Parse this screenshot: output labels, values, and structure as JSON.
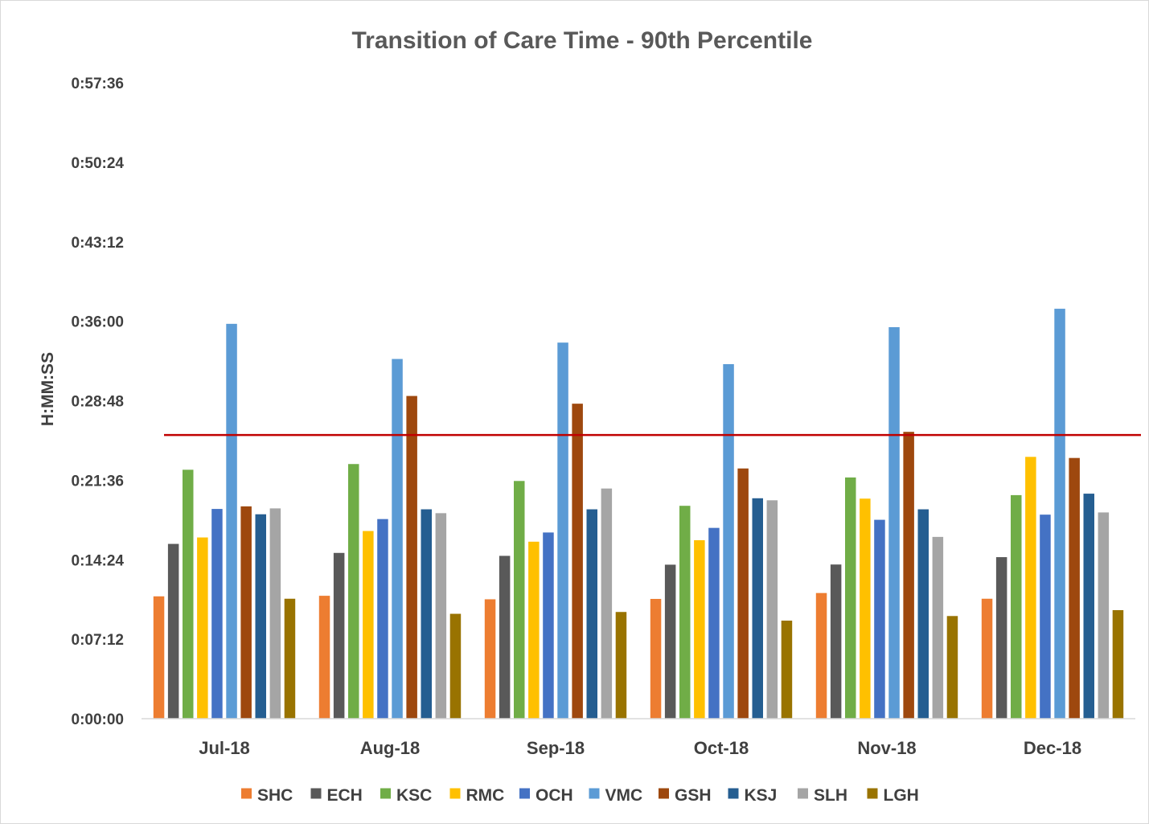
{
  "chart_data": {
    "type": "bar",
    "title": "Transition of Care Time - 90th Percentile",
    "ylabel": "H:MM:SS",
    "xlabel": "",
    "categories": [
      "Jul-18",
      "Aug-18",
      "Sep-18",
      "Oct-18",
      "Nov-18",
      "Dec-18"
    ],
    "y_unit": "seconds",
    "ylim": [
      0,
      3456
    ],
    "y_tick_values": [
      0,
      432,
      864,
      1296,
      1728,
      2160,
      2592,
      3024,
      3456
    ],
    "y_tick_labels": [
      "0:00:00",
      "0:07:12",
      "0:14:24",
      "0:21:36",
      "0:28:48",
      "0:36:00",
      "0:43:12",
      "0:50:24",
      "0:57:36"
    ],
    "grid": false,
    "legend": "bottom",
    "target_line": {
      "value": 1542,
      "color": "#C00000"
    },
    "series": [
      {
        "name": "SHC",
        "color": "#ED7D31",
        "values": [
          665,
          668,
          649,
          651,
          683,
          652
        ]
      },
      {
        "name": "ECH",
        "color": "#595959",
        "values": [
          950,
          901,
          885,
          837,
          838,
          878
        ]
      },
      {
        "name": "KSC",
        "color": "#70AD47",
        "values": [
          1353,
          1384,
          1292,
          1157,
          1311,
          1215
        ]
      },
      {
        "name": "RMC",
        "color": "#FFC000",
        "values": [
          985,
          1020,
          962,
          970,
          1196,
          1423
        ]
      },
      {
        "name": "OCH",
        "color": "#4472C4",
        "values": [
          1140,
          1085,
          1012,
          1037,
          1081,
          1109
        ]
      },
      {
        "name": "VMC",
        "color": "#5B9BD5",
        "values": [
          2146,
          1955,
          2044,
          1927,
          2128,
          2228
        ]
      },
      {
        "name": "GSH",
        "color": "#9E480E",
        "values": [
          1154,
          1754,
          1712,
          1360,
          1559,
          1417
        ]
      },
      {
        "name": "KSJ",
        "color": "#255E91",
        "values": [
          1111,
          1138,
          1138,
          1198,
          1138,
          1223
        ]
      },
      {
        "name": "SLH",
        "color": "#A5A5A5",
        "values": [
          1143,
          1117,
          1251,
          1187,
          988,
          1121
        ]
      },
      {
        "name": "LGH",
        "color": "#997300",
        "values": [
          652,
          570,
          580,
          533,
          558,
          590
        ]
      }
    ]
  }
}
